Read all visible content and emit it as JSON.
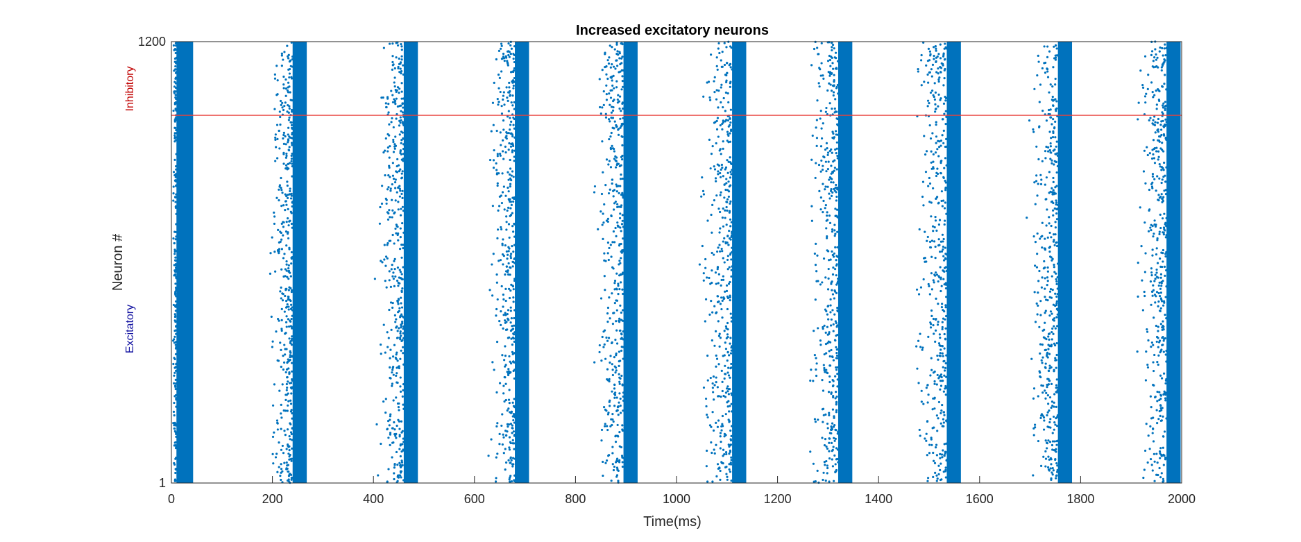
{
  "chart_data": {
    "type": "scatter",
    "title": "Increased excitatory neurons",
    "xlabel": "Time(ms)",
    "ylabel": "Neuron #",
    "xlim": [
      0,
      2000
    ],
    "ylim": [
      1,
      1200
    ],
    "x_ticks": [
      0,
      200,
      400,
      600,
      800,
      1000,
      1200,
      1400,
      1600,
      1800,
      2000
    ],
    "y_ticks": [
      1,
      1200
    ],
    "grid": false,
    "legend": "none",
    "divider": {
      "neuron": 1000,
      "color": "#e8413c"
    },
    "region_labels": [
      {
        "text": "Inhibitory",
        "color": "#c00000"
      },
      {
        "text": "Excitatory",
        "color": "#1010a0"
      }
    ],
    "marker_color": "#0072bd",
    "bursts": [
      {
        "core_start_ms": 10,
        "core_end_ms": 43,
        "scatter_start_ms": 2
      },
      {
        "core_start_ms": 240,
        "core_end_ms": 268,
        "scatter_start_ms": 190
      },
      {
        "core_start_ms": 460,
        "core_end_ms": 488,
        "scatter_start_ms": 400
      },
      {
        "core_start_ms": 680,
        "core_end_ms": 708,
        "scatter_start_ms": 620
      },
      {
        "core_start_ms": 895,
        "core_end_ms": 923,
        "scatter_start_ms": 830
      },
      {
        "core_start_ms": 1110,
        "core_end_ms": 1138,
        "scatter_start_ms": 1040
      },
      {
        "core_start_ms": 1320,
        "core_end_ms": 1348,
        "scatter_start_ms": 1255
      },
      {
        "core_start_ms": 1535,
        "core_end_ms": 1563,
        "scatter_start_ms": 1465
      },
      {
        "core_start_ms": 1755,
        "core_end_ms": 1783,
        "scatter_start_ms": 1690
      },
      {
        "core_start_ms": 1970,
        "core_end_ms": 1998,
        "scatter_start_ms": 1905
      }
    ]
  }
}
